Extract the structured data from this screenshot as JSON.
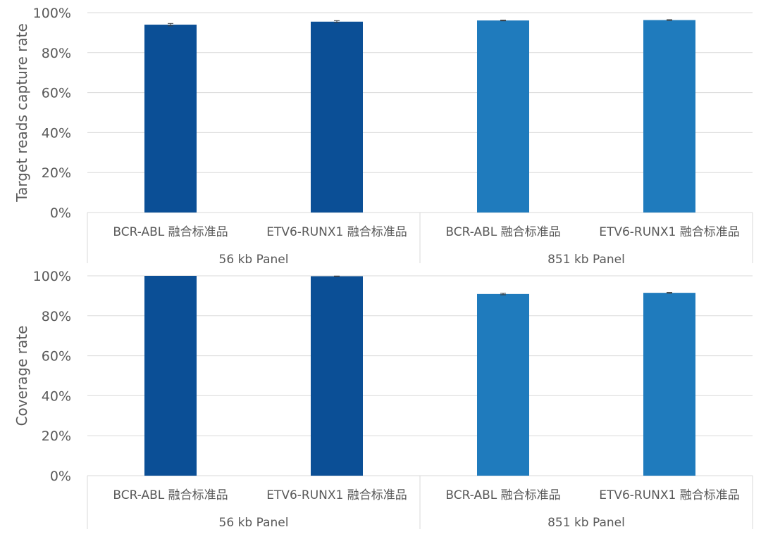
{
  "chart_data": [
    {
      "type": "bar",
      "ylabel": "Target reads capture rate",
      "ylim": [
        0,
        1
      ],
      "yticks": [
        "0%",
        "20%",
        "40%",
        "60%",
        "80%",
        "100%"
      ],
      "grid": true,
      "groups": [
        {
          "label": "56 kb Panel",
          "color": "#0b4f96",
          "categories": [
            "BCR-ABL 融合标准品",
            "ETV6-RUNX1 融合标准品"
          ],
          "values": [
            0.94,
            0.955
          ],
          "errors": [
            0.006,
            0.005
          ]
        },
        {
          "label": "851 kb Panel",
          "color": "#1f7bbd",
          "categories": [
            "BCR-ABL 融合标准品",
            "ETV6-RUNX1 融合标准品"
          ],
          "values": [
            0.961,
            0.963
          ],
          "errors": [
            0.002,
            0.002
          ]
        }
      ]
    },
    {
      "type": "bar",
      "ylabel": "Coverage rate",
      "ylim": [
        0,
        1
      ],
      "yticks": [
        "0%",
        "20%",
        "40%",
        "60%",
        "80%",
        "100%"
      ],
      "grid": true,
      "groups": [
        {
          "label": "56 kb Panel",
          "color": "#0b4f96",
          "categories": [
            "BCR-ABL 融合标准品",
            "ETV6-RUNX1 融合标准品"
          ],
          "values": [
            1.0,
            0.998
          ],
          "errors": [
            0.0,
            0.001
          ]
        },
        {
          "label": "851 kb Panel",
          "color": "#1f7bbd",
          "categories": [
            "BCR-ABL 融合标准品",
            "ETV6-RUNX1 融合标准品"
          ],
          "values": [
            0.909,
            0.915
          ],
          "errors": [
            0.004,
            0.002
          ]
        }
      ]
    }
  ]
}
